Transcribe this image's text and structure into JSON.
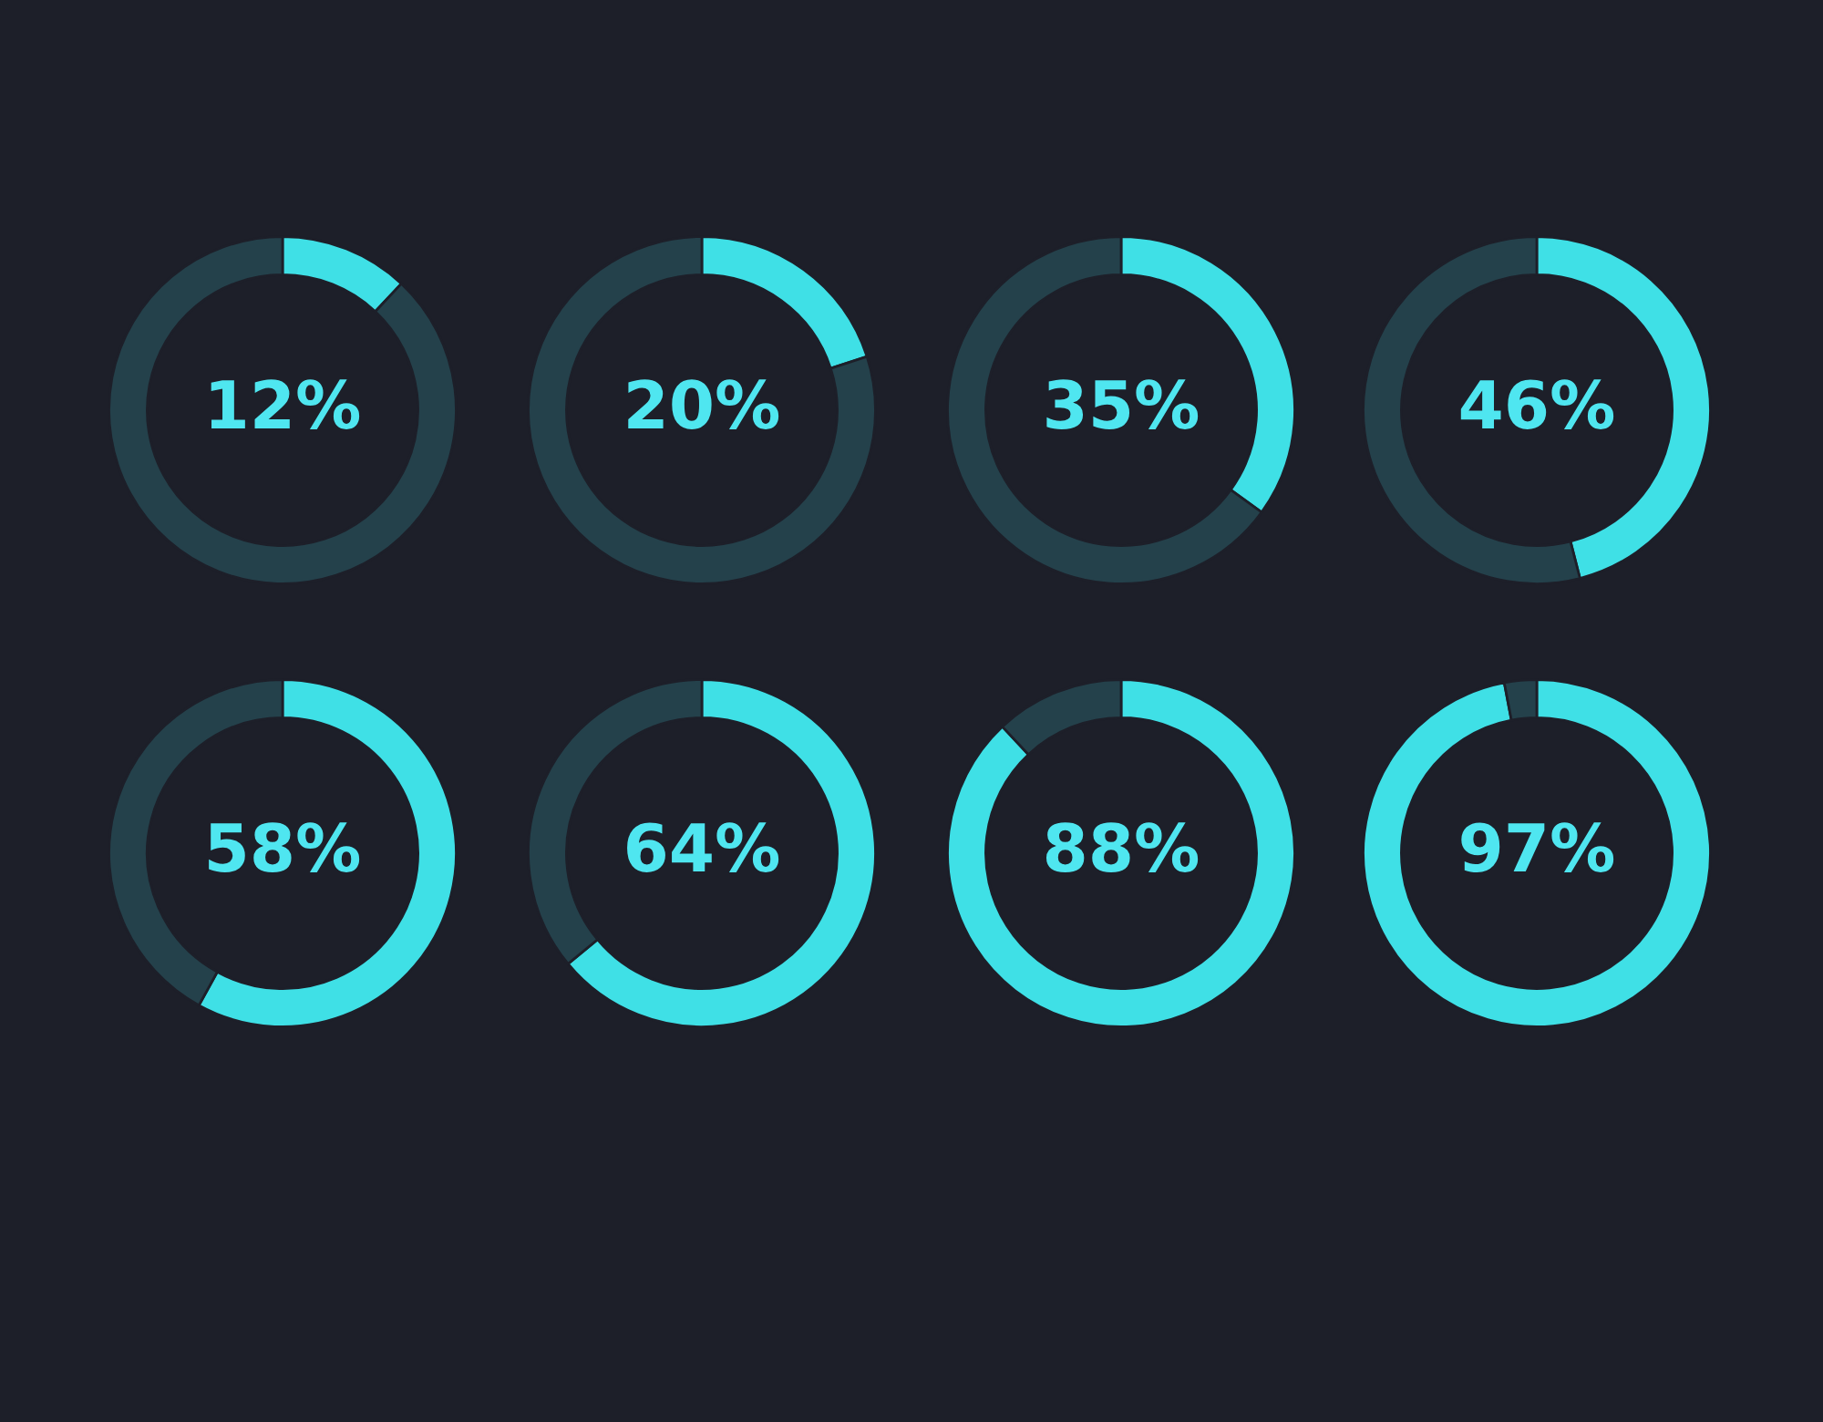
{
  "chart_data": [
    {
      "type": "donut",
      "categories": [
        null,
        null
      ],
      "values": [
        12,
        88
      ],
      "colors": [
        "#3fe0e6",
        "#24414b"
      ],
      "annotations": [
        "12%"
      ]
    },
    {
      "type": "donut",
      "categories": [
        null,
        null
      ],
      "values": [
        20,
        80
      ],
      "colors": [
        "#3fe0e6",
        "#24414b"
      ],
      "annotations": [
        "20%"
      ]
    },
    {
      "type": "donut",
      "categories": [
        null,
        null
      ],
      "values": [
        35,
        65
      ],
      "colors": [
        "#3fe0e6",
        "#24414b"
      ],
      "annotations": [
        "35%"
      ]
    },
    {
      "type": "donut",
      "categories": [
        null,
        null
      ],
      "values": [
        46,
        54
      ],
      "colors": [
        "#3fe0e6",
        "#24414b"
      ],
      "annotations": [
        "46%"
      ]
    },
    {
      "type": "donut",
      "categories": [
        null,
        null
      ],
      "values": [
        58,
        42
      ],
      "colors": [
        "#3fe0e6",
        "#24414b"
      ],
      "annotations": [
        "58%"
      ]
    },
    {
      "type": "donut",
      "categories": [
        null,
        null
      ],
      "values": [
        64,
        36
      ],
      "colors": [
        "#3fe0e6",
        "#24414b"
      ],
      "annotations": [
        "64%"
      ]
    },
    {
      "type": "donut",
      "categories": [
        null,
        null
      ],
      "values": [
        88,
        12
      ],
      "colors": [
        "#3fe0e6",
        "#24414b"
      ],
      "annotations": [
        "88%"
      ]
    },
    {
      "type": "donut",
      "categories": [
        null,
        null
      ],
      "values": [
        97,
        3
      ],
      "colors": [
        "#3fe0e6",
        "#24414b"
      ],
      "annotations": [
        "97%"
      ]
    }
  ]
}
